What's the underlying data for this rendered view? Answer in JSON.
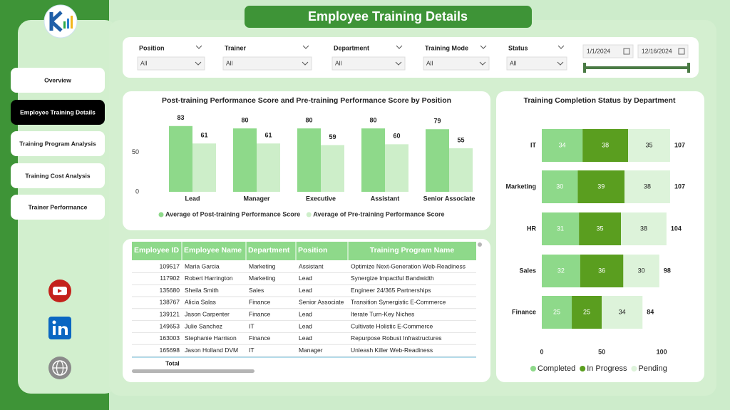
{
  "header": {
    "title": "Employee Training Details"
  },
  "nav": [
    "Overview",
    "Employee Training Details",
    "Training Program Analysis",
    "Training Cost Analysis",
    "Trainer Performance"
  ],
  "filters": [
    {
      "label": "Position",
      "value": "All"
    },
    {
      "label": "Trainer",
      "value": "All"
    },
    {
      "label": "Department",
      "value": "All"
    },
    {
      "label": "Training Mode",
      "value": "All"
    },
    {
      "label": "Status",
      "value": "All"
    }
  ],
  "date_range": [
    "1/1/2024",
    "12/16/2024"
  ],
  "chart_data": [
    {
      "type": "bar",
      "title": "Post-training Performance Score and Pre-training Performance Score by Position",
      "categories": [
        "Lead",
        "Manager",
        "Executive",
        "Assistant",
        "Senior Associate"
      ],
      "series": [
        {
          "name": "Average of Post-training Performance Score",
          "color": "#8ed98a",
          "values": [
            83,
            80,
            80,
            80,
            79
          ]
        },
        {
          "name": "Average of Pre-training Performance Score",
          "color": "#cdeec9",
          "values": [
            61,
            61,
            59,
            60,
            55
          ]
        }
      ],
      "ylim": [
        0,
        90
      ],
      "yticks": [
        0,
        50
      ],
      "grid": false,
      "legend": "bottom"
    },
    {
      "type": "stacked-bar-horizontal",
      "title": "Training Completion Status by Department",
      "categories": [
        "IT",
        "Marketing",
        "HR",
        "Sales",
        "Finance"
      ],
      "series": [
        {
          "name": "Completed",
          "color": "#8ed98a",
          "values": [
            34,
            30,
            31,
            32,
            25
          ]
        },
        {
          "name": "In Progress",
          "color": "#5a9e1f",
          "values": [
            38,
            39,
            35,
            36,
            25
          ]
        },
        {
          "name": "Pending",
          "color": "#ddf3da",
          "values": [
            35,
            38,
            38,
            30,
            34
          ]
        }
      ],
      "totals": [
        107,
        107,
        104,
        98,
        84
      ],
      "xlim": [
        0,
        110
      ],
      "xticks": [
        0,
        50,
        100
      ],
      "grid": false,
      "legend": "bottom"
    }
  ],
  "table": {
    "columns": [
      "Employee ID",
      "Employee Name",
      "Department",
      "Position",
      "Training Program Name"
    ],
    "rows": [
      [
        109517,
        "Maria Garcia",
        "Marketing",
        "Assistant",
        "Optimize Next-Generation Web-Readiness"
      ],
      [
        117902,
        "Robert Harrington",
        "Marketing",
        "Lead",
        "Synergize Impactful Bandwidth"
      ],
      [
        135680,
        "Sheila Smith",
        "Sales",
        "Lead",
        "Engineer 24/365 Partnerships"
      ],
      [
        138767,
        "Alicia Salas",
        "Finance",
        "Senior Associate",
        "Transition Synergistic E-Commerce"
      ],
      [
        139121,
        "Jason Carpenter",
        "Finance",
        "Lead",
        "Iterate Turn-Key Niches"
      ],
      [
        149653,
        "Julie Sanchez",
        "IT",
        "Lead",
        "Cultivate Holistic E-Commerce"
      ],
      [
        163003,
        "Stephanie Harrison",
        "Finance",
        "Lead",
        "Repurpose Robust Infrastructures"
      ],
      [
        165698,
        "Jason Holland DVM",
        "IT",
        "Manager",
        "Unleash Killer Web-Readiness"
      ]
    ],
    "total": "Total"
  }
}
